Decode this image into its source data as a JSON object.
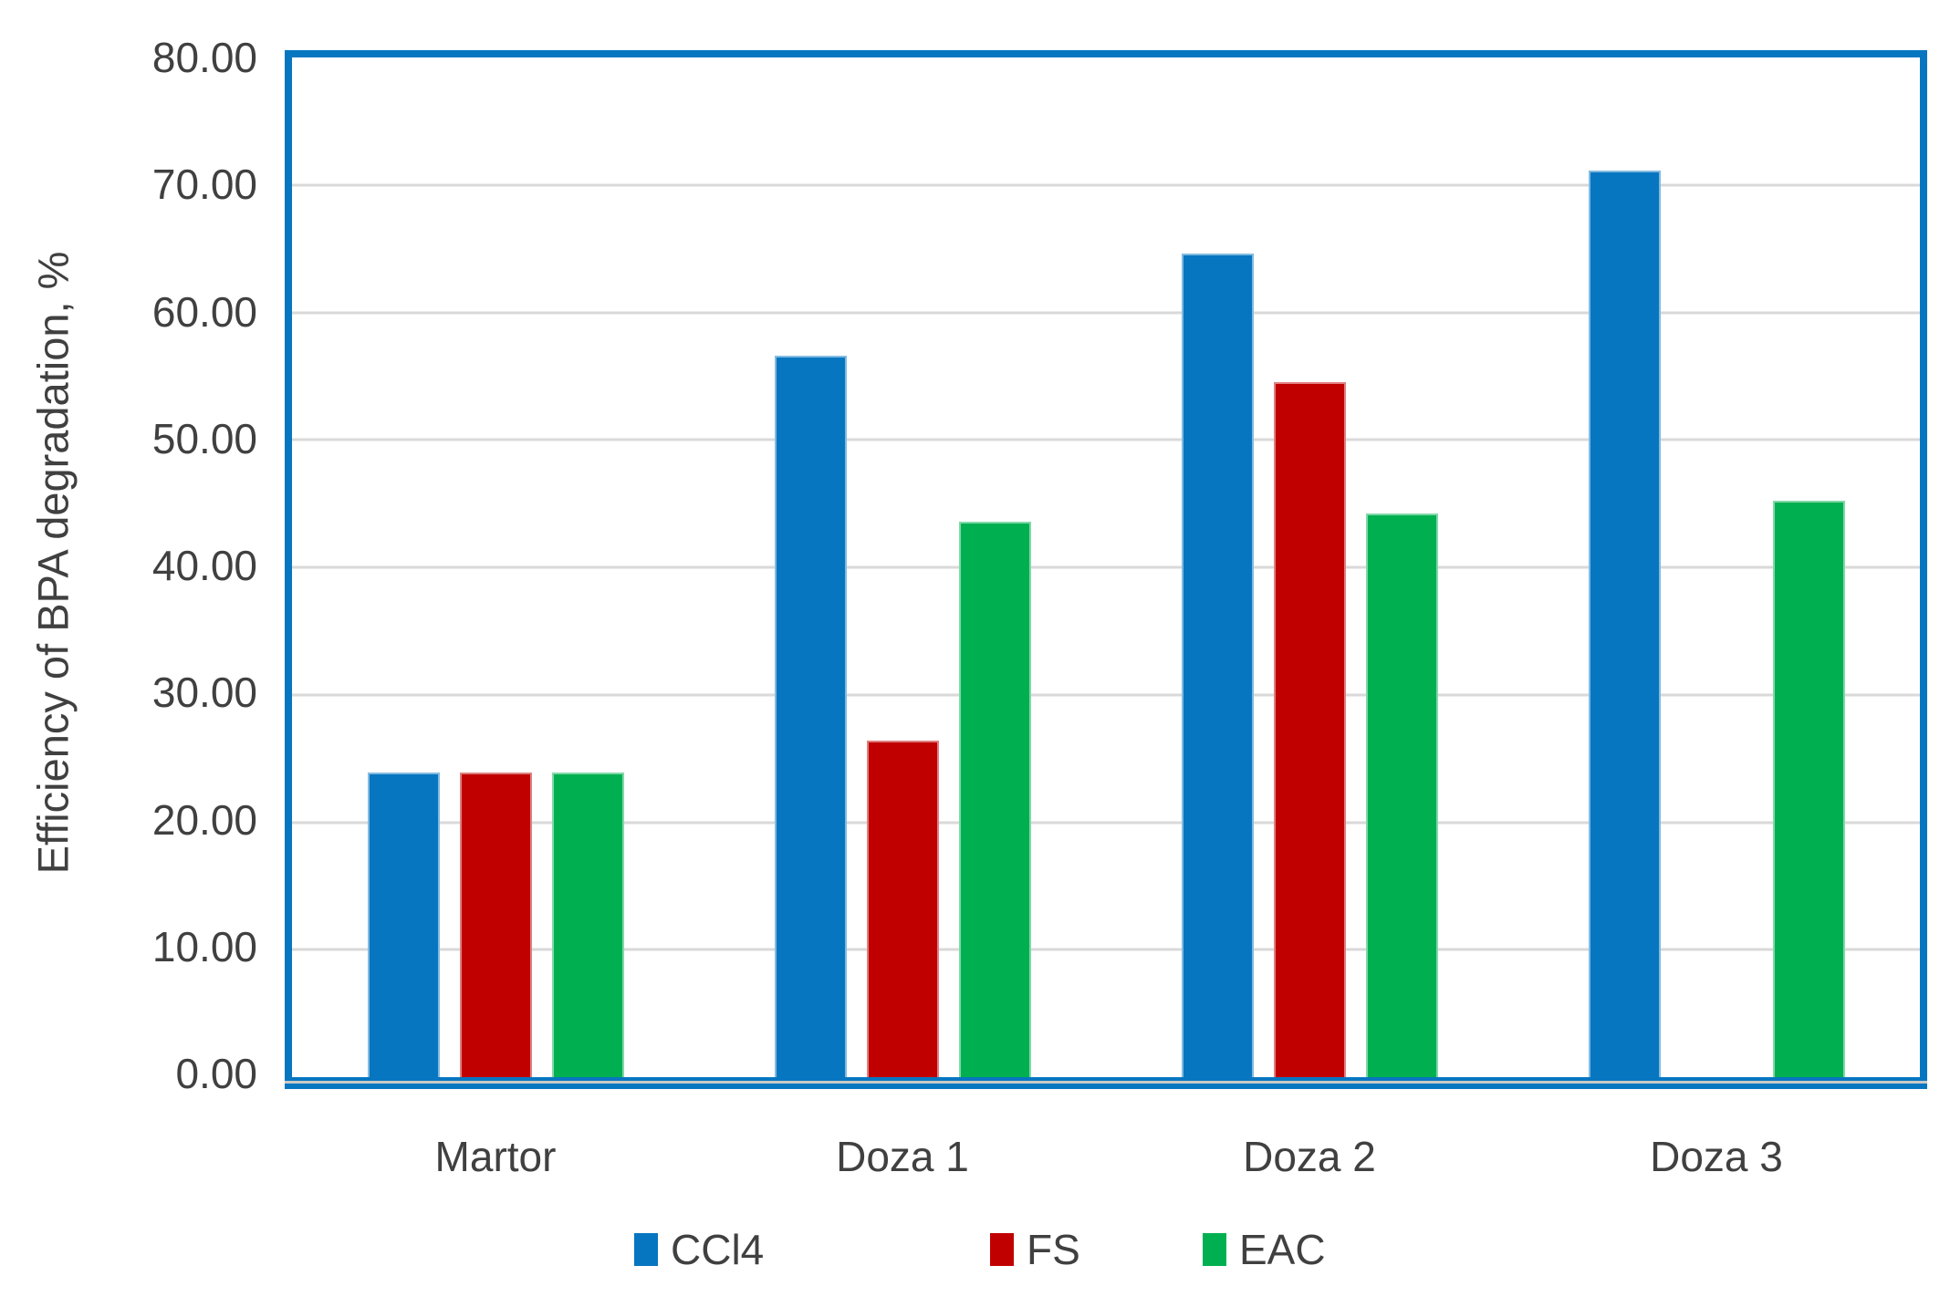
{
  "chart_data": {
    "type": "bar",
    "title": "",
    "categories": [
      "Martor",
      "Doza 1",
      "Doza 2",
      "Doza 3"
    ],
    "series": [
      {
        "name": "CCl4",
        "color": "#0776C1",
        "values": [
          23.9,
          56.6,
          64.6,
          71.1
        ]
      },
      {
        "name": "FS",
        "color": "#C00000",
        "values": [
          23.9,
          26.4,
          54.5,
          0
        ]
      },
      {
        "name": "EAC",
        "color": "#00B050",
        "values": [
          23.9,
          43.6,
          44.2,
          45.2
        ]
      }
    ],
    "xlabel": "",
    "ylabel": "Efficiency of BPA degradation, %",
    "ylim": [
      0,
      80
    ],
    "ytick_step": 10,
    "yticks": [
      "80.00",
      "70.00",
      "60.00",
      "50.00",
      "40.00",
      "30.00",
      "20.00",
      "10.00",
      "0.00"
    ],
    "grid": "horizontal",
    "legend_position": "bottom",
    "colors": {
      "plot_border": "#0776C1",
      "gridline": "#D9D9D9",
      "axis_shadow": "#C9C9C9",
      "text": "#404040",
      "background": "#FFFFFF"
    }
  }
}
